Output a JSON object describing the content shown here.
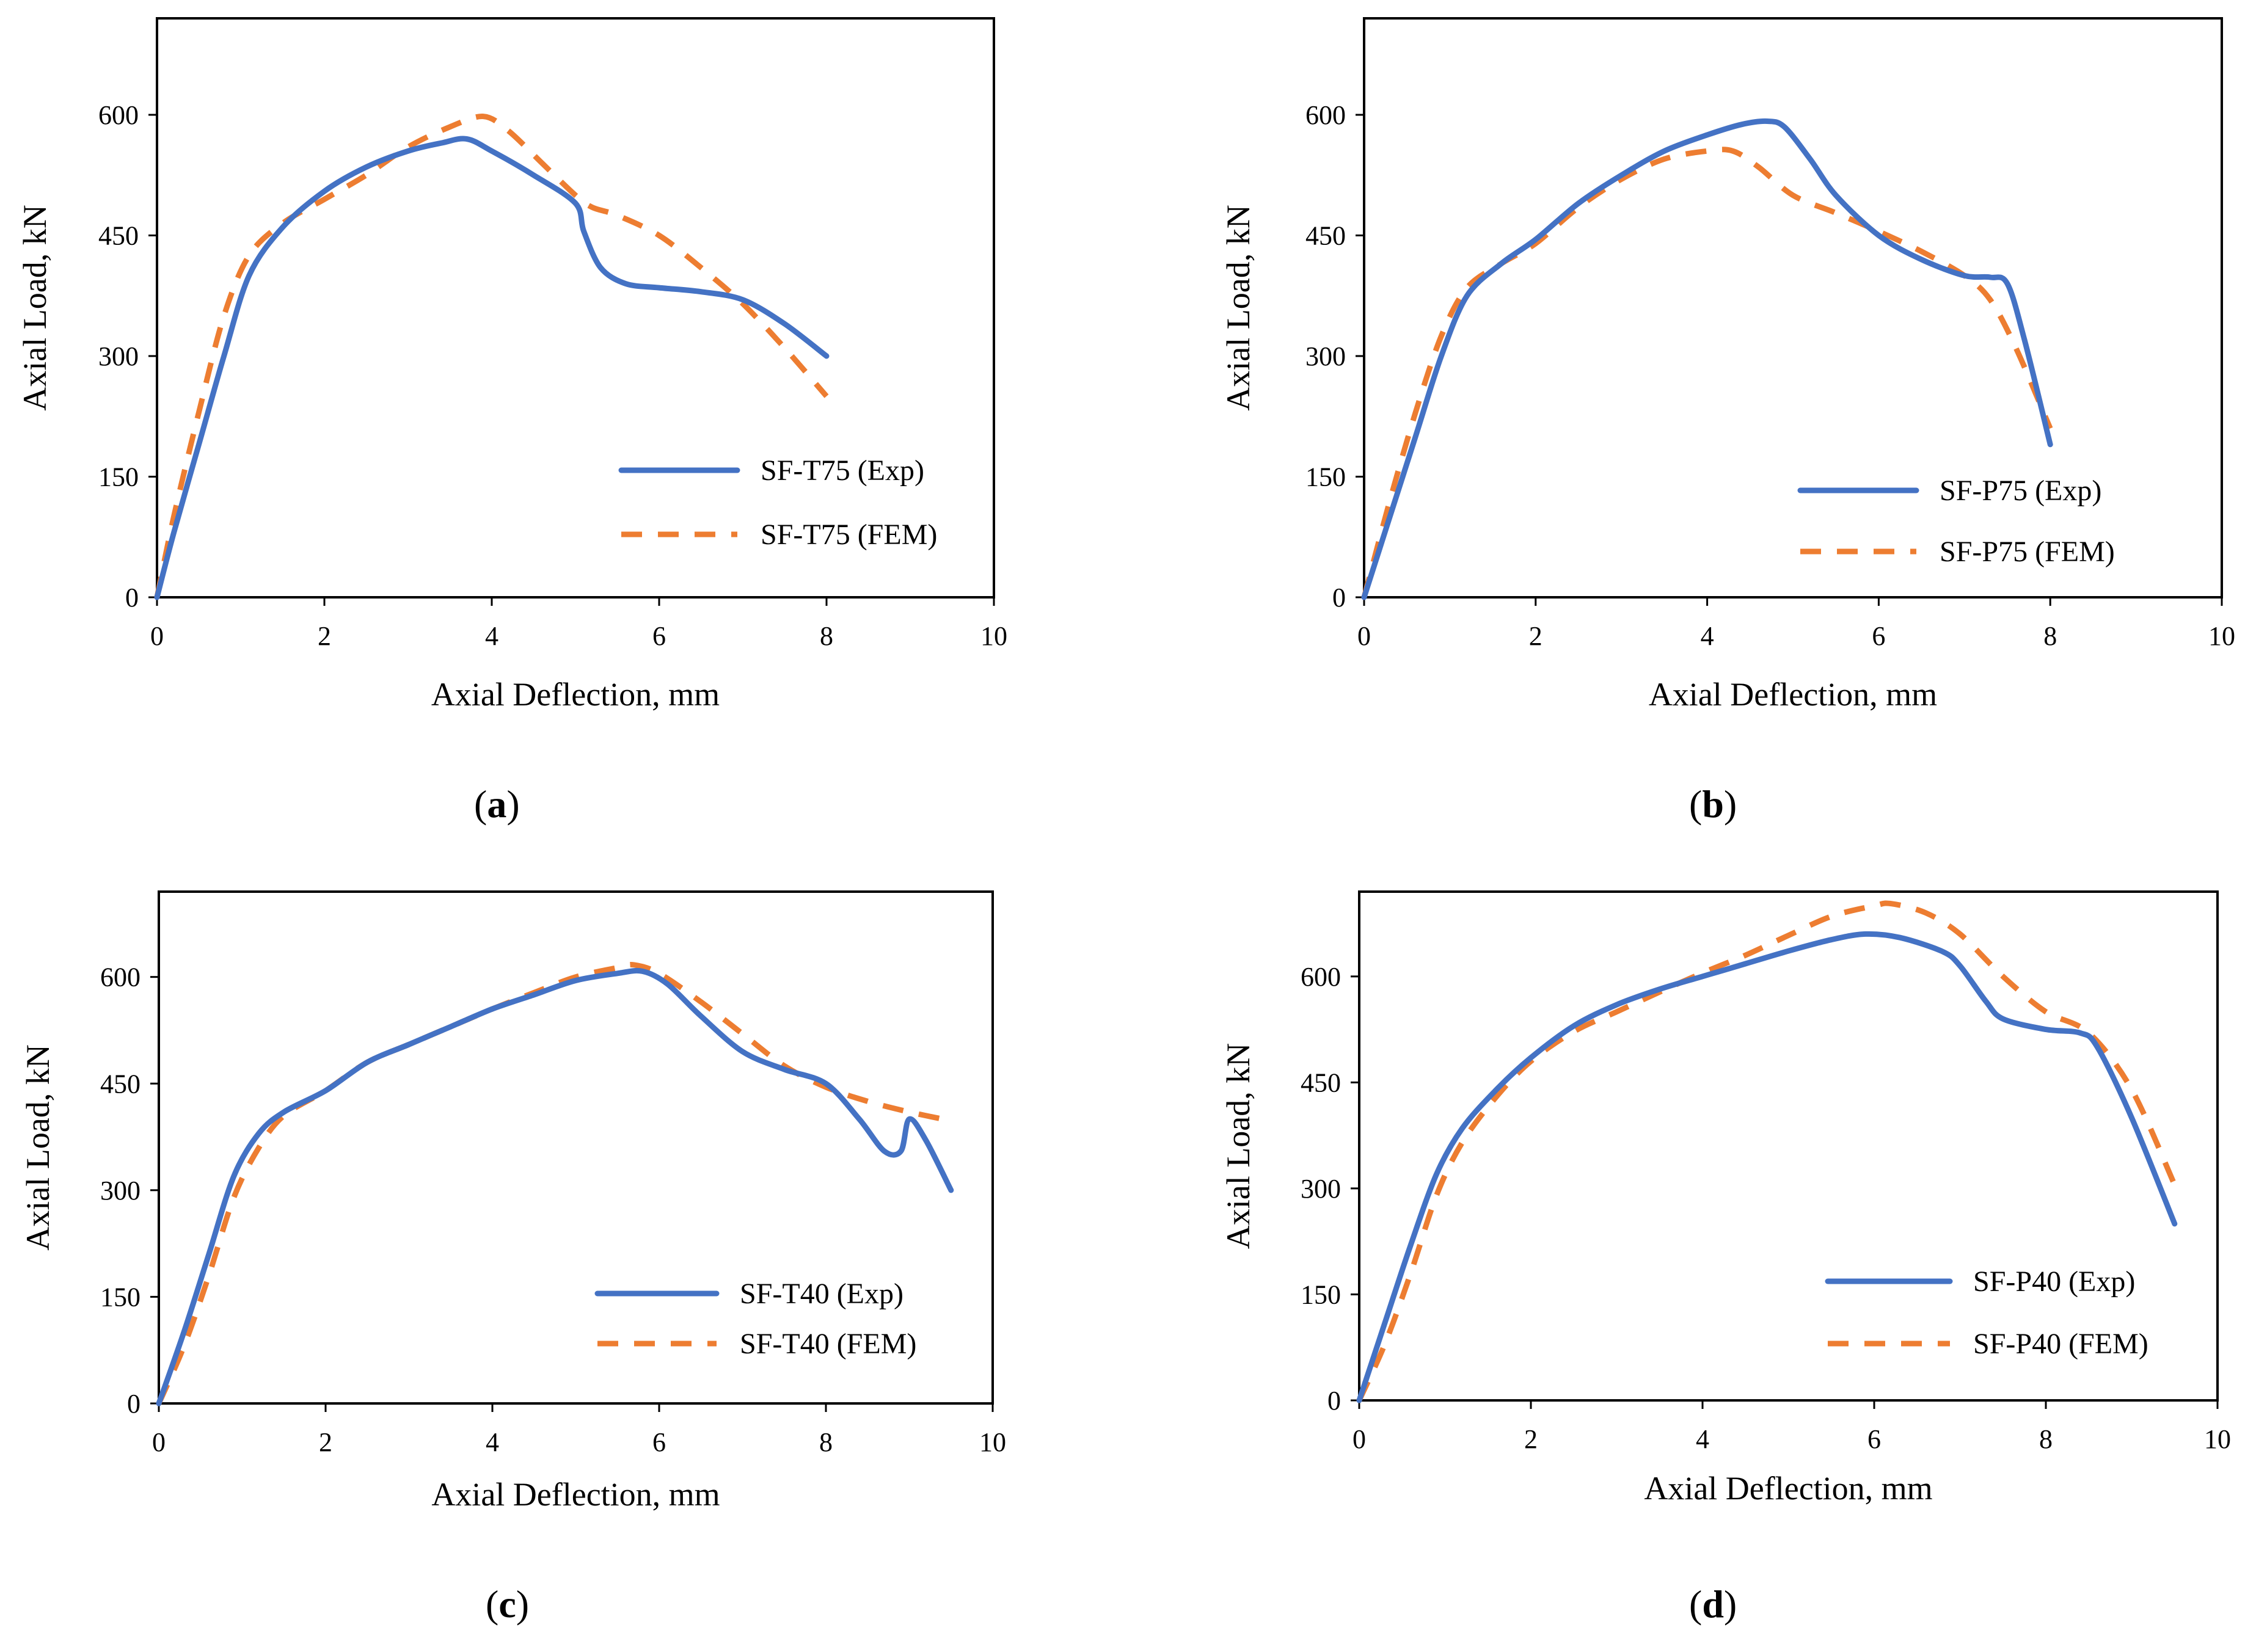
{
  "colors": {
    "exp": "#4472C4",
    "fem": "#ED7D31",
    "axis": "#000000"
  },
  "chart_data": [
    {
      "type": "line",
      "panel_letter": "a",
      "xlabel": "Axial Deflection, mm",
      "ylabel": "Axial Load, kN",
      "xlim": [
        0,
        10
      ],
      "ylim": [
        0,
        720
      ],
      "xticks": [
        0,
        2,
        4,
        6,
        8,
        10
      ],
      "yticks": [
        0,
        150,
        300,
        450,
        600
      ],
      "legend_position": "lower-right",
      "series": [
        {
          "name": "SF-T75 (Exp)",
          "style": "solid",
          "x": [
            0,
            0.2,
            0.5,
            0.8,
            1.1,
            1.5,
            2.0,
            2.5,
            3.0,
            3.4,
            3.7,
            4.0,
            4.5,
            5.0,
            5.1,
            5.3,
            5.6,
            6.0,
            6.5,
            7.0,
            7.5,
            8.0
          ],
          "y": [
            0,
            80,
            190,
            300,
            400,
            460,
            505,
            535,
            555,
            565,
            570,
            555,
            525,
            490,
            455,
            410,
            390,
            385,
            380,
            370,
            340,
            300
          ]
        },
        {
          "name": "SF-T75 (FEM)",
          "style": "dashed",
          "x": [
            0,
            0.2,
            0.5,
            0.8,
            1.1,
            1.5,
            2.0,
            2.5,
            3.0,
            3.5,
            3.9,
            4.2,
            4.6,
            5.0,
            5.2,
            5.5,
            6.0,
            6.5,
            7.0,
            7.5,
            8.0
          ],
          "y": [
            0,
            100,
            230,
            350,
            425,
            465,
            495,
            525,
            560,
            585,
            598,
            580,
            540,
            500,
            485,
            475,
            450,
            410,
            365,
            310,
            250
          ]
        }
      ]
    },
    {
      "type": "line",
      "panel_letter": "b",
      "xlabel": "Axial Deflection, mm",
      "ylabel": "Axial Load, kN",
      "xlim": [
        0,
        10
      ],
      "ylim": [
        0,
        720
      ],
      "xticks": [
        0,
        2,
        4,
        6,
        8,
        10
      ],
      "yticks": [
        0,
        150,
        300,
        450,
        600
      ],
      "legend_position": "lower-right",
      "series": [
        {
          "name": "SF-P75 (Exp)",
          "style": "solid",
          "x": [
            0,
            0.3,
            0.6,
            0.9,
            1.2,
            1.6,
            2.0,
            2.5,
            3.0,
            3.5,
            4.0,
            4.4,
            4.7,
            4.9,
            5.2,
            5.5,
            6.0,
            6.5,
            7.0,
            7.3,
            7.5,
            7.7,
            8.0
          ],
          "y": [
            0,
            100,
            200,
            300,
            375,
            415,
            445,
            490,
            525,
            555,
            575,
            588,
            592,
            585,
            545,
            500,
            450,
            420,
            400,
            398,
            390,
            320,
            190
          ]
        },
        {
          "name": "SF-P75 (FEM)",
          "style": "dashed",
          "x": [
            0,
            0.3,
            0.6,
            0.9,
            1.2,
            1.6,
            2.0,
            2.5,
            3.0,
            3.5,
            4.0,
            4.3,
            4.6,
            5.0,
            5.5,
            6.0,
            6.5,
            7.0,
            7.3,
            7.6,
            8.0
          ],
          "y": [
            0,
            120,
            230,
            325,
            385,
            415,
            440,
            485,
            520,
            545,
            555,
            555,
            535,
            500,
            478,
            455,
            430,
            400,
            370,
            310,
            210
          ]
        }
      ]
    },
    {
      "type": "line",
      "panel_letter": "c",
      "xlabel": "Axial Deflection, mm",
      "ylabel": "Axial Load, kN",
      "xlim": [
        0,
        10
      ],
      "ylim": [
        0,
        720
      ],
      "xticks": [
        0,
        2,
        4,
        6,
        8,
        10
      ],
      "yticks": [
        0,
        150,
        300,
        450,
        600
      ],
      "legend_position": "lower-right",
      "series": [
        {
          "name": "SF-T40 (Exp)",
          "style": "solid",
          "x": [
            0,
            0.3,
            0.6,
            0.9,
            1.2,
            1.5,
            2.0,
            2.5,
            3.0,
            3.5,
            4.0,
            4.5,
            5.0,
            5.5,
            5.8,
            6.1,
            6.5,
            7.0,
            7.5,
            8.0,
            8.4,
            8.7,
            8.9,
            9.0,
            9.2,
            9.5
          ],
          "y": [
            0,
            100,
            210,
            320,
            380,
            410,
            440,
            480,
            505,
            530,
            555,
            575,
            595,
            605,
            608,
            590,
            545,
            495,
            470,
            450,
            400,
            355,
            355,
            400,
            370,
            300
          ]
        },
        {
          "name": "SF-T40 (FEM)",
          "style": "dashed",
          "x": [
            0,
            0.3,
            0.6,
            0.9,
            1.2,
            1.5,
            2.0,
            2.5,
            3.0,
            3.5,
            4.0,
            4.5,
            5.0,
            5.5,
            5.7,
            6.0,
            6.5,
            7.0,
            7.5,
            8.0,
            8.5,
            9.0,
            9.4
          ],
          "y": [
            0,
            80,
            180,
            290,
            360,
            405,
            440,
            480,
            505,
            530,
            555,
            578,
            600,
            613,
            617,
            605,
            565,
            520,
            475,
            445,
            425,
            410,
            400
          ]
        }
      ]
    },
    {
      "type": "line",
      "panel_letter": "d",
      "xlabel": "Axial Deflection, mm",
      "ylabel": "Axial Load, kN",
      "xlim": [
        0,
        10
      ],
      "ylim": [
        0,
        720
      ],
      "xticks": [
        0,
        2,
        4,
        6,
        8,
        10
      ],
      "yticks": [
        0,
        150,
        300,
        450,
        600
      ],
      "legend_position": "lower-right",
      "series": [
        {
          "name": "SF-P40 (Exp)",
          "style": "solid",
          "x": [
            0,
            0.3,
            0.6,
            0.9,
            1.2,
            1.6,
            2.0,
            2.5,
            3.0,
            3.5,
            4.0,
            4.5,
            5.0,
            5.5,
            5.9,
            6.3,
            6.8,
            7.0,
            7.3,
            7.5,
            8.0,
            8.4,
            8.6,
            9.0,
            9.5
          ],
          "y": [
            0,
            110,
            220,
            320,
            385,
            440,
            485,
            530,
            560,
            582,
            600,
            618,
            636,
            652,
            660,
            655,
            635,
            615,
            565,
            540,
            525,
            520,
            500,
            400,
            250
          ]
        },
        {
          "name": "SF-P40 (FEM)",
          "style": "dashed",
          "x": [
            0,
            0.3,
            0.6,
            0.9,
            1.2,
            1.6,
            2.0,
            2.5,
            3.0,
            3.5,
            4.0,
            4.5,
            5.0,
            5.5,
            6.0,
            6.2,
            6.6,
            7.0,
            7.5,
            8.0,
            8.5,
            9.0,
            9.5
          ],
          "y": [
            0,
            80,
            180,
            290,
            365,
            430,
            480,
            522,
            550,
            578,
            605,
            630,
            658,
            685,
            700,
            703,
            690,
            660,
            600,
            550,
            520,
            440,
            305
          ]
        }
      ]
    }
  ]
}
